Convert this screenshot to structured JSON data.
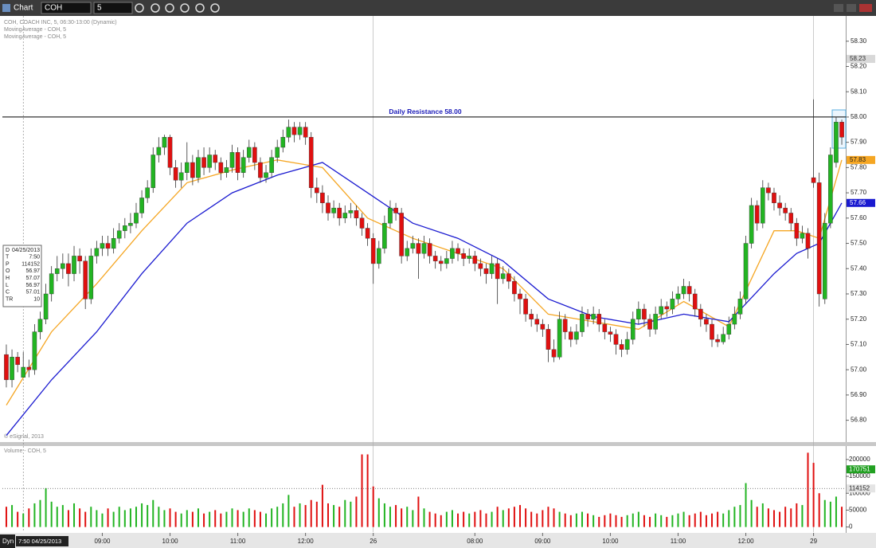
{
  "toolbar": {
    "title": "Chart",
    "symbol": "COH",
    "interval": "5"
  },
  "status": {
    "mode": "Dyn",
    "cursor_time": "7:50 04/25/2013"
  },
  "data_window": [
    [
      "D",
      "04/25/2013"
    ],
    [
      "T",
      "7:50"
    ],
    [
      "P",
      114152
    ],
    [
      "O",
      56.97
    ],
    [
      "H",
      57.07
    ],
    [
      "L",
      56.97
    ],
    [
      "C",
      57.01
    ],
    [
      "TR",
      10
    ]
  ],
  "chart_data": [
    {
      "type": "candlestick",
      "title": "COH, COACH INC, 5, 06:30-13:00 (Dynamic)",
      "copyright": "© eSignal, 2013",
      "up_color": "#22b422",
      "down_color": "#e01010",
      "xlim": [
        -0.7,
        148.7
      ],
      "ylim": [
        56.72,
        58.4
      ],
      "yticks": [
        {
          "value": 56.8,
          "label": "56.80"
        },
        {
          "value": 56.9,
          "label": "56.90"
        },
        {
          "value": 57.0,
          "label": "57.00"
        },
        {
          "value": 57.1,
          "label": "57.10"
        },
        {
          "value": 57.2,
          "label": "57.20"
        },
        {
          "value": 57.3,
          "label": "57.30"
        },
        {
          "value": 57.4,
          "label": "57.40"
        },
        {
          "value": 57.5,
          "label": "57.50"
        },
        {
          "value": 57.6,
          "label": "57.60"
        },
        {
          "value": 57.7,
          "label": "57.70"
        },
        {
          "value": 57.8,
          "label": "57.80"
        },
        {
          "value": 57.9,
          "label": "57.90"
        },
        {
          "value": 58.0,
          "label": "58.00"
        },
        {
          "value": 58.1,
          "label": "58.10"
        },
        {
          "value": 58.2,
          "label": "58.20"
        },
        {
          "value": 58.3,
          "label": "58.30"
        }
      ],
      "session_breaks": [
        65,
        143
      ],
      "crosshair": 3,
      "annotation": {
        "text": "Daily Resistance 58.00",
        "value": 58.0
      },
      "price_tags": [
        {
          "value": 58.23,
          "color": "#d8d8d8",
          "text_color": "#333333"
        },
        {
          "value": 57.83,
          "color": "#f5a623",
          "text_color": "#222222"
        },
        {
          "value": 57.66,
          "color": "#1a1ad0",
          "text_color": "#ffffff"
        }
      ],
      "open": [
        57.06,
        56.96,
        57.05,
        56.97,
        57.01,
        57.0,
        57.15,
        57.2,
        57.3,
        57.38,
        57.4,
        57.42,
        57.38,
        57.45,
        57.43,
        57.28,
        57.45,
        57.48,
        57.5,
        57.48,
        57.52,
        57.55,
        57.57,
        57.58,
        57.62,
        57.68,
        57.72,
        57.85,
        57.88,
        57.92,
        57.8,
        57.75,
        57.78,
        57.82,
        57.76,
        57.84,
        57.8,
        57.85,
        57.82,
        57.78,
        57.8,
        57.86,
        57.78,
        57.84,
        57.88,
        57.82,
        57.76,
        57.78,
        57.84,
        57.88,
        57.92,
        57.96,
        57.93,
        57.96,
        57.92,
        57.72,
        57.7,
        57.66,
        57.62,
        57.64,
        57.6,
        57.62,
        57.63,
        57.6,
        57.56,
        57.52,
        57.42,
        57.48,
        57.58,
        57.64,
        57.62,
        57.45,
        57.48,
        57.5,
        57.46,
        57.5,
        57.45,
        57.43,
        57.42,
        57.44,
        57.48,
        57.46,
        57.44,
        57.45,
        57.42,
        57.4,
        57.38,
        57.42,
        57.36,
        57.38,
        57.35,
        57.3,
        57.28,
        57.22,
        57.2,
        57.18,
        57.16,
        57.08,
        57.05,
        57.2,
        57.15,
        57.12,
        57.15,
        57.22,
        57.2,
        57.22,
        57.18,
        57.15,
        57.14,
        57.1,
        57.08,
        57.12,
        57.2,
        57.24,
        57.2,
        57.16,
        57.22,
        57.25,
        57.24,
        57.28,
        57.3,
        57.33,
        57.3,
        57.24,
        57.2,
        57.18,
        57.12,
        57.11,
        57.14,
        57.18,
        57.22,
        57.28,
        57.5,
        57.65,
        57.58,
        57.72,
        57.7,
        57.66,
        57.64,
        57.62,
        57.58,
        57.52,
        57.54,
        57.76,
        57.74,
        57.28,
        57.58,
        57.82,
        57.98
      ],
      "high": [
        57.1,
        57.08,
        57.07,
        57.07,
        57.04,
        57.18,
        57.23,
        57.34,
        57.41,
        57.45,
        57.46,
        57.46,
        57.49,
        57.48,
        57.45,
        57.48,
        57.51,
        57.53,
        57.53,
        57.56,
        57.58,
        57.6,
        57.62,
        57.66,
        57.71,
        57.75,
        57.88,
        57.92,
        57.93,
        57.93,
        57.83,
        57.82,
        57.9,
        57.85,
        57.87,
        57.88,
        57.88,
        57.87,
        57.84,
        57.83,
        57.89,
        57.88,
        57.87,
        57.91,
        57.9,
        57.84,
        57.81,
        57.87,
        57.91,
        57.95,
        57.99,
        57.98,
        57.98,
        57.98,
        57.94,
        57.76,
        57.73,
        57.69,
        57.67,
        57.66,
        57.65,
        57.66,
        57.65,
        57.62,
        57.58,
        57.54,
        57.51,
        57.61,
        57.67,
        57.66,
        57.64,
        57.51,
        57.53,
        57.52,
        57.53,
        57.52,
        57.47,
        57.45,
        57.47,
        57.51,
        57.5,
        57.48,
        57.48,
        57.47,
        57.44,
        57.42,
        57.45,
        57.44,
        57.41,
        57.4,
        57.37,
        57.32,
        57.3,
        57.24,
        57.22,
        57.2,
        57.18,
        57.12,
        57.23,
        57.22,
        57.17,
        57.18,
        57.25,
        57.24,
        57.25,
        57.24,
        57.2,
        57.17,
        57.16,
        57.12,
        57.15,
        57.23,
        57.27,
        57.26,
        57.22,
        57.25,
        57.28,
        57.27,
        57.31,
        57.33,
        57.36,
        57.35,
        57.32,
        57.26,
        57.22,
        57.2,
        57.14,
        57.17,
        57.21,
        57.25,
        57.31,
        57.53,
        57.68,
        57.67,
        57.75,
        57.74,
        57.72,
        57.69,
        57.66,
        57.64,
        57.6,
        57.57,
        57.56,
        58.07,
        57.78,
        57.62,
        57.88,
        58.0,
        57.99
      ],
      "low": [
        56.93,
        56.93,
        56.99,
        56.97,
        56.97,
        56.98,
        57.12,
        57.18,
        57.27,
        57.35,
        57.36,
        57.33,
        57.35,
        57.38,
        57.24,
        57.26,
        57.42,
        57.45,
        57.45,
        57.46,
        57.5,
        57.52,
        57.54,
        57.56,
        57.6,
        57.66,
        57.7,
        57.82,
        57.85,
        57.77,
        57.72,
        57.72,
        57.75,
        57.73,
        57.74,
        57.77,
        57.78,
        57.79,
        57.75,
        57.76,
        57.78,
        57.75,
        57.76,
        57.82,
        57.79,
        57.74,
        57.74,
        57.76,
        57.82,
        57.86,
        57.9,
        57.9,
        57.91,
        57.89,
        57.68,
        57.66,
        57.62,
        57.59,
        57.6,
        57.57,
        57.58,
        57.6,
        57.57,
        57.53,
        57.49,
        57.34,
        57.4,
        57.46,
        57.56,
        57.59,
        57.42,
        57.43,
        57.46,
        57.36,
        57.44,
        57.42,
        57.4,
        57.39,
        57.4,
        57.42,
        57.43,
        57.41,
        57.42,
        57.39,
        57.37,
        57.34,
        57.36,
        57.26,
        57.34,
        57.32,
        57.27,
        57.22,
        57.19,
        57.17,
        57.15,
        57.13,
        57.03,
        57.03,
        57.04,
        57.12,
        57.09,
        57.1,
        57.13,
        57.17,
        57.18,
        57.15,
        57.12,
        57.11,
        57.06,
        57.05,
        57.06,
        57.1,
        57.18,
        57.17,
        57.13,
        57.14,
        57.2,
        57.21,
        57.22,
        57.26,
        57.28,
        57.27,
        57.21,
        57.17,
        57.15,
        57.09,
        57.09,
        57.1,
        57.12,
        57.16,
        57.2,
        57.26,
        57.48,
        57.55,
        57.56,
        57.67,
        57.63,
        57.61,
        57.59,
        57.55,
        57.49,
        57.5,
        57.44,
        57.72,
        57.25,
        57.26,
        57.56,
        57.8,
        57.89
      ],
      "close": [
        56.96,
        57.05,
        57.02,
        57.01,
        57.0,
        57.15,
        57.2,
        57.3,
        57.38,
        57.4,
        57.42,
        57.38,
        57.45,
        57.43,
        57.28,
        57.45,
        57.48,
        57.5,
        57.48,
        57.52,
        57.55,
        57.57,
        57.58,
        57.62,
        57.68,
        57.72,
        57.85,
        57.88,
        57.92,
        57.8,
        57.75,
        57.78,
        57.82,
        57.76,
        57.84,
        57.8,
        57.85,
        57.82,
        57.78,
        57.8,
        57.86,
        57.78,
        57.84,
        57.88,
        57.82,
        57.76,
        57.78,
        57.84,
        57.88,
        57.92,
        57.96,
        57.93,
        57.96,
        57.92,
        57.72,
        57.7,
        57.66,
        57.62,
        57.64,
        57.6,
        57.62,
        57.63,
        57.6,
        57.56,
        57.52,
        57.42,
        57.48,
        57.58,
        57.64,
        57.62,
        57.45,
        57.48,
        57.5,
        57.46,
        57.5,
        57.45,
        57.43,
        57.42,
        57.44,
        57.48,
        57.46,
        57.44,
        57.45,
        57.42,
        57.4,
        57.38,
        57.42,
        57.36,
        57.38,
        57.35,
        57.3,
        57.28,
        57.22,
        57.2,
        57.18,
        57.16,
        57.08,
        57.05,
        57.2,
        57.15,
        57.12,
        57.15,
        57.22,
        57.2,
        57.22,
        57.18,
        57.15,
        57.14,
        57.1,
        57.08,
        57.12,
        57.2,
        57.24,
        57.2,
        57.16,
        57.22,
        57.25,
        57.24,
        57.28,
        57.3,
        57.33,
        57.3,
        57.24,
        57.2,
        57.18,
        57.12,
        57.11,
        57.14,
        57.18,
        57.22,
        57.28,
        57.5,
        57.65,
        57.58,
        57.72,
        57.7,
        57.66,
        57.64,
        57.62,
        57.58,
        57.52,
        57.54,
        57.48,
        57.74,
        57.3,
        57.58,
        57.85,
        57.98,
        57.92
      ],
      "overlays": [
        {
          "name": "MovingAverage - COH, 5",
          "color": "#f5a623",
          "x": [
            0,
            8,
            16,
            24,
            32,
            40,
            48,
            56,
            64,
            72,
            80,
            88,
            96,
            104,
            112,
            120,
            128,
            136,
            140,
            144,
            148
          ],
          "values": [
            56.86,
            57.15,
            57.34,
            57.55,
            57.74,
            57.79,
            57.83,
            57.8,
            57.6,
            57.52,
            57.46,
            57.4,
            57.22,
            57.19,
            57.16,
            57.27,
            57.17,
            57.55,
            57.55,
            57.52,
            57.83
          ]
        },
        {
          "name": "MovingAverage - COH, 5",
          "color": "#1a1ad0",
          "x": [
            0,
            8,
            16,
            24,
            32,
            40,
            48,
            56,
            64,
            72,
            80,
            88,
            96,
            104,
            112,
            120,
            128,
            136,
            140,
            144,
            148
          ],
          "values": [
            56.74,
            56.96,
            57.15,
            57.38,
            57.58,
            57.7,
            57.77,
            57.82,
            57.7,
            57.58,
            57.52,
            57.43,
            57.28,
            57.21,
            57.18,
            57.22,
            57.19,
            57.38,
            57.46,
            57.5,
            57.66
          ]
        }
      ]
    },
    {
      "type": "bar",
      "title": "Volume - COH, 5",
      "xlim": [
        -0.7,
        148.7
      ],
      "ylim": [
        -15000,
        235000
      ],
      "yticks": [
        0,
        50000,
        100000,
        150000,
        200000
      ],
      "xticks": [
        {
          "value": 17,
          "label": "09:00"
        },
        {
          "value": 29,
          "label": "10:00"
        },
        {
          "value": 41,
          "label": "11:00"
        },
        {
          "value": 53,
          "label": "12:00"
        },
        {
          "value": 65,
          "label": "26"
        },
        {
          "value": 83,
          "label": "08:00"
        },
        {
          "value": 95,
          "label": "09:00"
        },
        {
          "value": 107,
          "label": "10:00"
        },
        {
          "value": 119,
          "label": "11:00"
        },
        {
          "value": 131,
          "label": "12:00"
        },
        {
          "value": 143,
          "label": "29"
        }
      ],
      "price_tags": [
        {
          "value": 170751,
          "color": "#22a022",
          "text_color": "#ffffff",
          "line": false
        },
        {
          "value": 114152,
          "color": "#e4e4e4",
          "text_color": "#222222",
          "line": true
        }
      ],
      "values": [
        60000,
        65000,
        45000,
        40000,
        55000,
        70000,
        80000,
        115000,
        75000,
        60000,
        65000,
        50000,
        70000,
        55000,
        45000,
        60000,
        50000,
        40000,
        55000,
        45000,
        60000,
        50000,
        55000,
        60000,
        70000,
        65000,
        80000,
        60000,
        50000,
        55000,
        45000,
        40000,
        50000,
        45000,
        55000,
        40000,
        45000,
        50000,
        40000,
        45000,
        55000,
        50000,
        45000,
        55000,
        50000,
        45000,
        40000,
        55000,
        60000,
        70000,
        95000,
        60000,
        70000,
        65000,
        80000,
        75000,
        125000,
        70000,
        65000,
        60000,
        80000,
        75000,
        90000,
        215000,
        215000,
        120000,
        85000,
        70000,
        60000,
        65000,
        55000,
        60000,
        50000,
        90000,
        55000,
        45000,
        40000,
        35000,
        45000,
        50000,
        40000,
        45000,
        40000,
        45000,
        50000,
        40000,
        45000,
        60000,
        50000,
        55000,
        60000,
        65000,
        55000,
        45000,
        40000,
        50000,
        60000,
        55000,
        45000,
        40000,
        35000,
        40000,
        45000,
        40000,
        35000,
        30000,
        35000,
        40000,
        35000,
        30000,
        35000,
        40000,
        45000,
        35000,
        30000,
        40000,
        35000,
        30000,
        35000,
        40000,
        45000,
        35000,
        40000,
        45000,
        35000,
        40000,
        45000,
        40000,
        50000,
        60000,
        65000,
        130000,
        80000,
        60000,
        70000,
        55000,
        50000,
        45000,
        60000,
        55000,
        70000,
        65000,
        220000,
        190000,
        100000,
        80000,
        75000,
        90000,
        60000
      ]
    }
  ]
}
